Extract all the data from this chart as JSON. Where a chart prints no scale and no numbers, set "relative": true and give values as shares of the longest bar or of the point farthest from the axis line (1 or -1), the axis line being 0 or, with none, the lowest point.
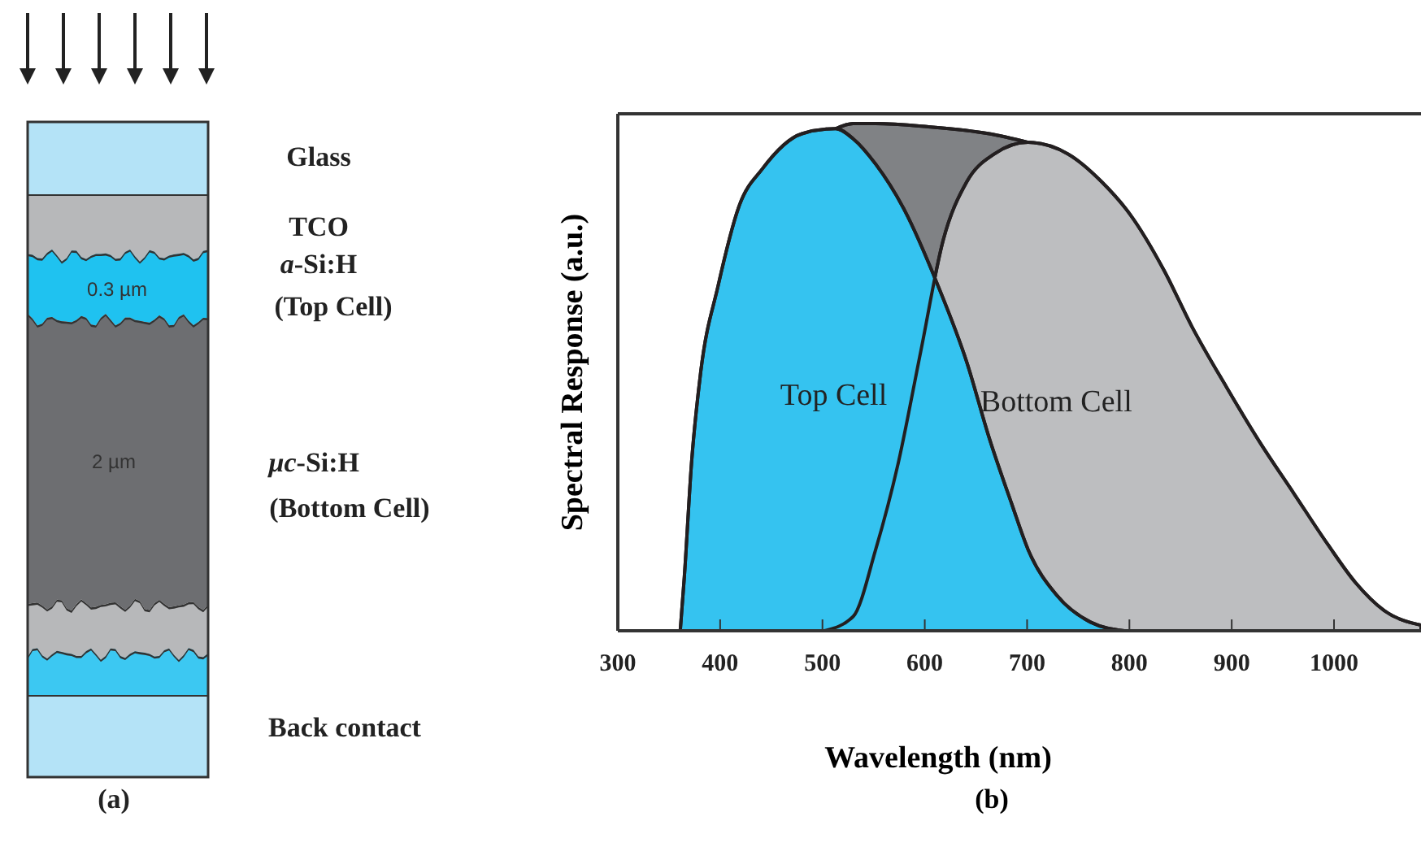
{
  "chart_data": [
    {
      "type": "other",
      "annotations": [
        "Glass",
        "TCO",
        "a-Si:H",
        "(Top Cell)",
        "0.3 µm",
        "2 µm",
        "µc-Si:H",
        "(Bottom Cell)",
        "Back contact",
        "(a)"
      ]
    },
    {
      "type": "area",
      "relative": true,
      "xlabel": "Wavelength (nm)",
      "ylabel": "Spectral Response (a.u.)",
      "xlim": [
        300,
        1085
      ],
      "xticks": [
        300,
        400,
        500,
        600,
        700,
        800,
        900,
        1000
      ],
      "tick_labels": "x",
      "grid": false,
      "annotations": [
        "(b)"
      ],
      "series": [
        {
          "color": "#808285",
          "x": [
            513,
            530,
            552,
            602,
            663,
            701
          ],
          "values": [
            0.99,
            1.0,
            1.0,
            0.994,
            0.98,
            0.963
          ]
        },
        {
          "name": "Bottom Cell",
          "color": "#bdbec0",
          "x": [
            502,
            530,
            552,
            574,
            596,
            618,
            641,
            668,
            701,
            740,
            773,
            801,
            834,
            861,
            895,
            928,
            961,
            994,
            1021,
            1049,
            1085
          ],
          "values": [
            0,
            0.028,
            0.16,
            0.33,
            0.55,
            0.77,
            0.885,
            0.94,
            0.963,
            0.94,
            0.885,
            0.82,
            0.71,
            0.6,
            0.48,
            0.37,
            0.27,
            0.17,
            0.095,
            0.04,
            0.011
          ]
        },
        {
          "name": "Top Cell",
          "color": "#35c3f0",
          "x": [
            361,
            365,
            372,
            381,
            398,
            419,
            441,
            480,
            513,
            530,
            552,
            580,
            613,
            641,
            663,
            685,
            701,
            729,
            762,
            795
          ],
          "values": [
            0,
            0.106,
            0.33,
            0.51,
            0.68,
            0.84,
            0.91,
            0.98,
            0.99,
            0.97,
            0.92,
            0.83,
            0.68,
            0.53,
            0.38,
            0.25,
            0.16,
            0.07,
            0.017,
            0
          ]
        }
      ]
    }
  ]
}
